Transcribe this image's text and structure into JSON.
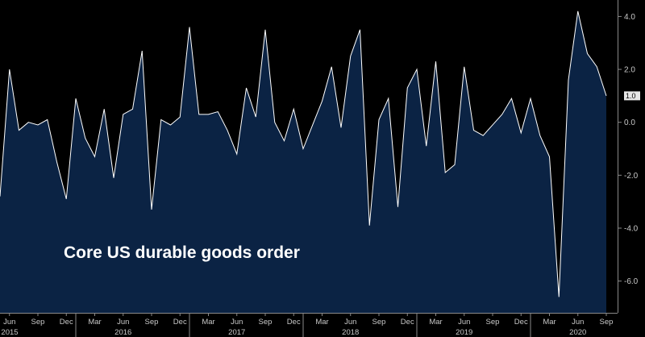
{
  "chart_data": {
    "type": "area",
    "title": "Core US durable goods order",
    "xlabel": "",
    "ylabel": "",
    "ylim": [
      -7.2,
      4.5
    ],
    "y_ticks": [
      "4.0",
      "2.0",
      "0.0",
      "-2.0",
      "-4.0",
      "-6.0"
    ],
    "y_tick_values": [
      4,
      2,
      0,
      -2,
      -4,
      -6
    ],
    "last_value_label": "1.0",
    "grid": false,
    "colors": {
      "fill": "#0b2344",
      "line": "#ffffff",
      "axis": "#8a8a8a",
      "background": "#000000"
    },
    "x_month_ticks": [
      {
        "label": "Jun",
        "i": 1
      },
      {
        "label": "Sep",
        "i": 4
      },
      {
        "label": "Dec",
        "i": 7
      },
      {
        "label": "Mar",
        "i": 10
      },
      {
        "label": "Jun",
        "i": 13
      },
      {
        "label": "Sep",
        "i": 16
      },
      {
        "label": "Dec",
        "i": 19
      },
      {
        "label": "Mar",
        "i": 22
      },
      {
        "label": "Jun",
        "i": 25
      },
      {
        "label": "Sep",
        "i": 28
      },
      {
        "label": "Dec",
        "i": 31
      },
      {
        "label": "Mar",
        "i": 34
      },
      {
        "label": "Jun",
        "i": 37
      },
      {
        "label": "Sep",
        "i": 40
      },
      {
        "label": "Dec",
        "i": 43
      },
      {
        "label": "Mar",
        "i": 46
      },
      {
        "label": "Jun",
        "i": 49
      },
      {
        "label": "Sep",
        "i": 52
      },
      {
        "label": "Dec",
        "i": 55
      },
      {
        "label": "Mar",
        "i": 58
      },
      {
        "label": "Jun",
        "i": 61
      },
      {
        "label": "Sep",
        "i": 64
      }
    ],
    "x_year_ticks": [
      {
        "label": "2015",
        "i": 1
      },
      {
        "label": "2016",
        "i": 13
      },
      {
        "label": "2017",
        "i": 25
      },
      {
        "label": "2018",
        "i": 37
      },
      {
        "label": "2019",
        "i": 49
      },
      {
        "label": "2020",
        "i": 61
      }
    ],
    "series": [
      {
        "values": [
          -2.8,
          2.0,
          -0.3,
          0.0,
          -0.1,
          0.1,
          -1.5,
          -2.9,
          0.9,
          -0.6,
          -1.3,
          0.5,
          -2.1,
          0.3,
          0.5,
          2.7,
          -3.3,
          0.1,
          -0.1,
          0.2,
          3.6,
          0.3,
          0.3,
          0.4,
          -0.3,
          -1.2,
          1.3,
          0.2,
          3.5,
          0.0,
          -0.7,
          0.5,
          -1.0,
          -0.1,
          0.8,
          2.1,
          -0.2,
          2.5,
          3.5,
          -3.9,
          0.1,
          0.9,
          -3.2,
          1.3,
          2.0,
          -0.9,
          2.3,
          -1.9,
          -1.6,
          2.1,
          -0.3,
          -0.5,
          -0.1,
          0.3,
          0.9,
          -0.4,
          0.9,
          -0.5,
          -1.3,
          -6.6,
          1.6,
          4.2,
          2.6,
          2.1,
          1.0
        ]
      }
    ]
  }
}
